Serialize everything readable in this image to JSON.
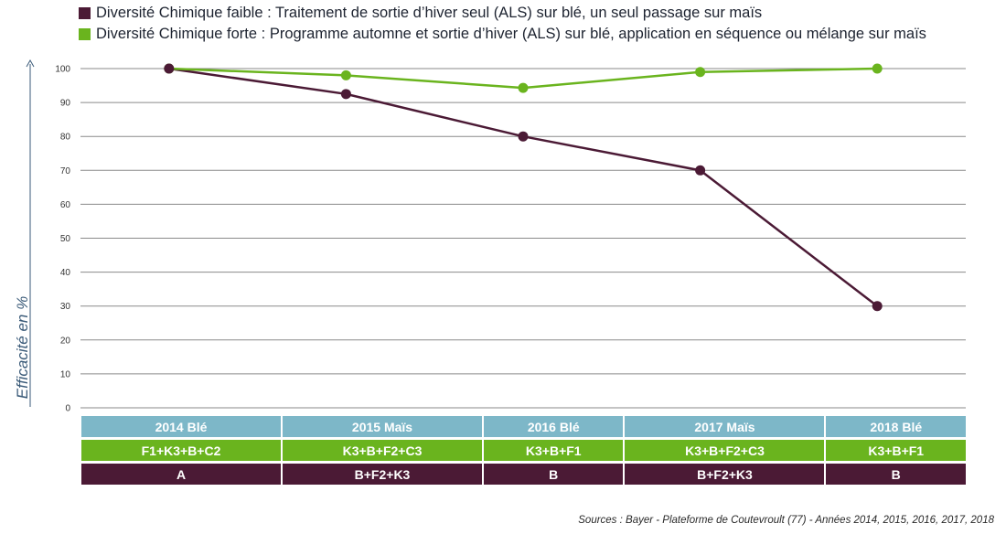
{
  "legend": [
    {
      "color": "#4b1a35",
      "label": "Diversité Chimique faible : Traitement de sortie d’hiver seul (ALS) sur blé, un seul passage sur maïs"
    },
    {
      "color": "#6ab41e",
      "label": "Diversité Chimique forte : Programme automne et sortie d’hiver (ALS) sur blé, application en séquence ou mélange sur maïs"
    }
  ],
  "chart_data": {
    "type": "line",
    "categories": [
      "2014 Blé",
      "2015 Maïs",
      "2016 Blé",
      "2017 Maïs",
      "2018 Blé"
    ],
    "series": [
      {
        "name": "Diversité Chimique faible",
        "color": "#4b1a35",
        "values": [
          100,
          92.5,
          80,
          70,
          30
        ]
      },
      {
        "name": "Diversité Chimique forte",
        "color": "#6ab41e",
        "values": [
          100,
          98,
          94.3,
          99,
          100
        ]
      }
    ],
    "ylabel": "Efficacité en %",
    "ylim": [
      0,
      100
    ],
    "yticks": [
      "0",
      "10",
      "20",
      "30",
      "40",
      "50",
      "60",
      "70",
      "80",
      "90",
      "100"
    ],
    "grid": true,
    "legend_position": "top-left"
  },
  "table": {
    "years": [
      "2014 Blé",
      "2015 Maïs",
      "2016 Blé",
      "2017 Maïs",
      "2018 Blé"
    ],
    "strong": [
      "F1+K3+B+C2",
      "K3+B+F2+C3",
      "K3+B+F1",
      "K3+B+F2+C3",
      "K3+B+F1"
    ],
    "weak": [
      "A",
      "B+F2+K3",
      "B",
      "B+F2+K3",
      "B"
    ]
  },
  "source": "Sources : Bayer - Plateforme de Coutevroult (77) - Années 2014, 2015, 2016, 2017, 2018"
}
